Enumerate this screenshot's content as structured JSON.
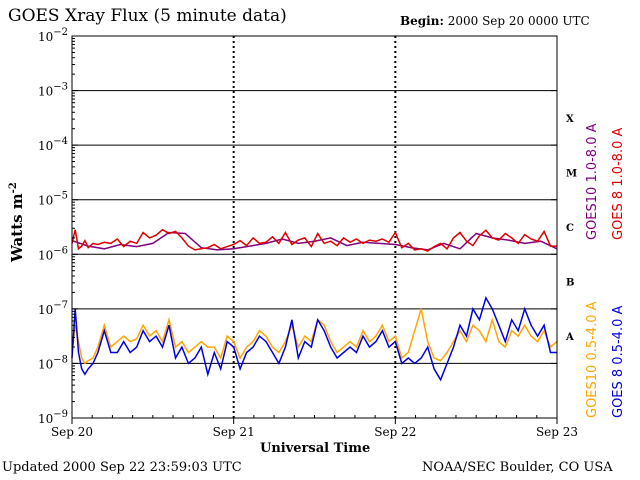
{
  "header": {
    "title": "GOES Xray Flux (5 minute data)",
    "begin_label": "Begin:",
    "begin_value": "2000 Sep 20 0000 UTC"
  },
  "footer": {
    "updated": "Updated 2000 Sep 22 23:59:03 UTC",
    "credit": "NOAA/SEC Boulder, CO USA"
  },
  "chart_data": {
    "type": "line",
    "title": "GOES Xray Flux (5 minute data)",
    "xlabel": "Universal Time",
    "ylabel": "Watts m",
    "ylabel_sup": "-2",
    "yscale": "log",
    "ylim_exp": [
      -9,
      -2
    ],
    "y_tick_exponents": [
      -2,
      -3,
      -4,
      -5,
      -6,
      -7,
      -8,
      -9
    ],
    "y_tick_base": "10",
    "xlim": [
      0,
      3
    ],
    "x_ticks": [
      {
        "value": 0,
        "label": "Sep 20"
      },
      {
        "value": 1,
        "label": "Sep 21"
      },
      {
        "value": 2,
        "label": "Sep 22"
      },
      {
        "value": 3,
        "label": "Sep 23"
      }
    ],
    "flare_classes": [
      {
        "label": "X",
        "exp": -3.5
      },
      {
        "label": "M",
        "exp": -4.5
      },
      {
        "label": "C",
        "exp": -5.5
      },
      {
        "label": "B",
        "exp": -6.5
      },
      {
        "label": "A",
        "exp": -7.5
      }
    ],
    "grid": "horizontal",
    "legend_placement": "right",
    "series": [
      {
        "name": "GOES10 1.0-8.0 A",
        "color": "#800080",
        "x": [
          0.0,
          0.1,
          0.2,
          0.3,
          0.4,
          0.5,
          0.6,
          0.7,
          0.8,
          0.9,
          1.0,
          1.1,
          1.2,
          1.3,
          1.4,
          1.5,
          1.6,
          1.7,
          1.8,
          1.9,
          2.0,
          2.1,
          2.2,
          2.3,
          2.4,
          2.5,
          2.6,
          2.7,
          2.8,
          2.9,
          3.0
        ],
        "exp": [
          -5.75,
          -5.85,
          -5.9,
          -5.82,
          -5.86,
          -5.8,
          -5.6,
          -5.62,
          -5.88,
          -5.92,
          -5.9,
          -5.85,
          -5.8,
          -5.72,
          -5.8,
          -5.76,
          -5.7,
          -5.84,
          -5.78,
          -5.8,
          -5.82,
          -5.88,
          -5.92,
          -5.8,
          -5.9,
          -5.62,
          -5.7,
          -5.74,
          -5.8,
          -5.76,
          -5.9
        ]
      },
      {
        "name": "GOES 8 1.0-8.0 A",
        "color": "#e00000",
        "x": [
          0.0,
          0.02,
          0.04,
          0.06,
          0.08,
          0.1,
          0.13,
          0.16,
          0.2,
          0.24,
          0.28,
          0.32,
          0.36,
          0.4,
          0.44,
          0.48,
          0.52,
          0.56,
          0.6,
          0.64,
          0.68,
          0.72,
          0.76,
          0.8,
          0.84,
          0.88,
          0.92,
          0.96,
          1.0,
          1.04,
          1.08,
          1.12,
          1.16,
          1.2,
          1.24,
          1.28,
          1.32,
          1.36,
          1.4,
          1.44,
          1.48,
          1.52,
          1.56,
          1.6,
          1.64,
          1.68,
          1.72,
          1.76,
          1.8,
          1.84,
          1.88,
          1.92,
          1.96,
          2.0,
          2.04,
          2.08,
          2.12,
          2.16,
          2.2,
          2.24,
          2.28,
          2.32,
          2.36,
          2.4,
          2.44,
          2.48,
          2.52,
          2.56,
          2.6,
          2.64,
          2.68,
          2.72,
          2.76,
          2.8,
          2.84,
          2.88,
          2.92,
          2.96,
          3.0
        ],
        "exp": [
          -5.8,
          -5.55,
          -5.9,
          -5.85,
          -5.75,
          -5.88,
          -5.8,
          -5.82,
          -5.78,
          -5.8,
          -5.72,
          -5.86,
          -5.76,
          -5.8,
          -5.6,
          -5.7,
          -5.65,
          -5.55,
          -5.62,
          -5.58,
          -5.7,
          -5.85,
          -5.92,
          -5.9,
          -5.88,
          -5.82,
          -5.9,
          -5.86,
          -5.82,
          -5.75,
          -5.84,
          -5.7,
          -5.8,
          -5.78,
          -5.68,
          -5.8,
          -5.6,
          -5.82,
          -5.74,
          -5.7,
          -5.86,
          -5.62,
          -5.8,
          -5.76,
          -5.84,
          -5.7,
          -5.78,
          -5.72,
          -5.8,
          -5.74,
          -5.76,
          -5.72,
          -5.78,
          -5.6,
          -5.88,
          -5.8,
          -5.92,
          -5.9,
          -5.94,
          -5.86,
          -5.8,
          -5.9,
          -5.7,
          -5.6,
          -5.76,
          -5.84,
          -5.66,
          -5.56,
          -5.7,
          -5.74,
          -5.62,
          -5.7,
          -5.8,
          -5.64,
          -5.72,
          -5.76,
          -5.58,
          -5.85,
          -5.85
        ]
      },
      {
        "name": "GOES10 0.5-4.0 A",
        "color": "#ffa500",
        "x": [
          0.0,
          0.02,
          0.04,
          0.06,
          0.08,
          0.1,
          0.13,
          0.16,
          0.2,
          0.24,
          0.28,
          0.32,
          0.36,
          0.4,
          0.44,
          0.48,
          0.52,
          0.56,
          0.6,
          0.64,
          0.68,
          0.72,
          0.76,
          0.8,
          0.84,
          0.88,
          0.92,
          0.96,
          1.0,
          1.04,
          1.08,
          1.12,
          1.16,
          1.2,
          1.24,
          1.28,
          1.32,
          1.36,
          1.4,
          1.44,
          1.48,
          1.52,
          1.56,
          1.6,
          1.64,
          1.68,
          1.72,
          1.76,
          1.8,
          1.84,
          1.88,
          1.92,
          1.96,
          2.0,
          2.04,
          2.08,
          2.12,
          2.16,
          2.2,
          2.24,
          2.28,
          2.32,
          2.36,
          2.4,
          2.44,
          2.48,
          2.52,
          2.56,
          2.6,
          2.64,
          2.68,
          2.72,
          2.76,
          2.8,
          2.84,
          2.88,
          2.92,
          2.96,
          3.0
        ],
        "exp": [
          -7.8,
          -7.3,
          -7.6,
          -7.9,
          -8.0,
          -7.95,
          -7.9,
          -7.7,
          -7.3,
          -7.7,
          -7.6,
          -7.5,
          -7.6,
          -7.55,
          -7.3,
          -7.5,
          -7.4,
          -7.6,
          -7.2,
          -7.7,
          -7.6,
          -7.8,
          -7.7,
          -7.6,
          -7.7,
          -7.7,
          -7.9,
          -7.5,
          -7.6,
          -7.9,
          -7.7,
          -7.6,
          -7.4,
          -7.5,
          -7.7,
          -7.8,
          -7.6,
          -7.3,
          -7.7,
          -7.5,
          -7.6,
          -7.2,
          -7.3,
          -7.6,
          -7.8,
          -7.7,
          -7.6,
          -7.7,
          -7.4,
          -7.6,
          -7.5,
          -7.3,
          -7.6,
          -7.5,
          -7.9,
          -7.8,
          -7.4,
          -7.0,
          -7.6,
          -7.9,
          -7.95,
          -7.8,
          -7.6,
          -7.4,
          -7.6,
          -7.3,
          -7.4,
          -7.6,
          -7.2,
          -7.6,
          -7.7,
          -7.4,
          -7.5,
          -7.3,
          -7.5,
          -7.6,
          -7.4,
          -7.7,
          -7.6
        ]
      },
      {
        "name": "GOES 8 0.5-4.0 A",
        "color": "#0000e0",
        "x": [
          0.0,
          0.02,
          0.04,
          0.06,
          0.08,
          0.1,
          0.13,
          0.16,
          0.2,
          0.24,
          0.28,
          0.32,
          0.36,
          0.4,
          0.44,
          0.48,
          0.52,
          0.56,
          0.6,
          0.64,
          0.68,
          0.72,
          0.76,
          0.8,
          0.84,
          0.88,
          0.92,
          0.96,
          1.0,
          1.04,
          1.08,
          1.12,
          1.16,
          1.2,
          1.24,
          1.28,
          1.32,
          1.36,
          1.4,
          1.44,
          1.48,
          1.52,
          1.56,
          1.6,
          1.64,
          1.68,
          1.72,
          1.76,
          1.8,
          1.84,
          1.88,
          1.92,
          1.96,
          2.0,
          2.04,
          2.08,
          2.12,
          2.16,
          2.2,
          2.24,
          2.28,
          2.32,
          2.36,
          2.4,
          2.44,
          2.48,
          2.52,
          2.56,
          2.6,
          2.64,
          2.68,
          2.72,
          2.76,
          2.8,
          2.84,
          2.88,
          2.92,
          2.96,
          3.0
        ],
        "exp": [
          -7.9,
          -7.0,
          -7.8,
          -8.1,
          -8.2,
          -8.1,
          -8.0,
          -7.8,
          -7.4,
          -7.8,
          -7.8,
          -7.6,
          -7.8,
          -7.7,
          -7.4,
          -7.6,
          -7.5,
          -7.7,
          -7.3,
          -7.9,
          -7.7,
          -8.0,
          -7.9,
          -7.7,
          -8.2,
          -7.8,
          -8.1,
          -7.6,
          -7.7,
          -8.1,
          -7.8,
          -7.7,
          -7.5,
          -7.6,
          -7.8,
          -8.0,
          -7.7,
          -7.2,
          -7.9,
          -7.6,
          -7.7,
          -7.2,
          -7.4,
          -7.7,
          -7.9,
          -7.8,
          -7.7,
          -7.8,
          -7.5,
          -7.7,
          -7.6,
          -7.4,
          -7.7,
          -7.6,
          -8.0,
          -7.9,
          -8.0,
          -7.9,
          -7.7,
          -8.1,
          -8.3,
          -8.0,
          -7.7,
          -7.3,
          -7.5,
          -7.0,
          -7.2,
          -6.8,
          -7.0,
          -7.3,
          -7.6,
          -7.2,
          -7.4,
          -7.0,
          -7.3,
          -7.5,
          -7.3,
          -7.8,
          -7.8
        ]
      }
    ]
  }
}
